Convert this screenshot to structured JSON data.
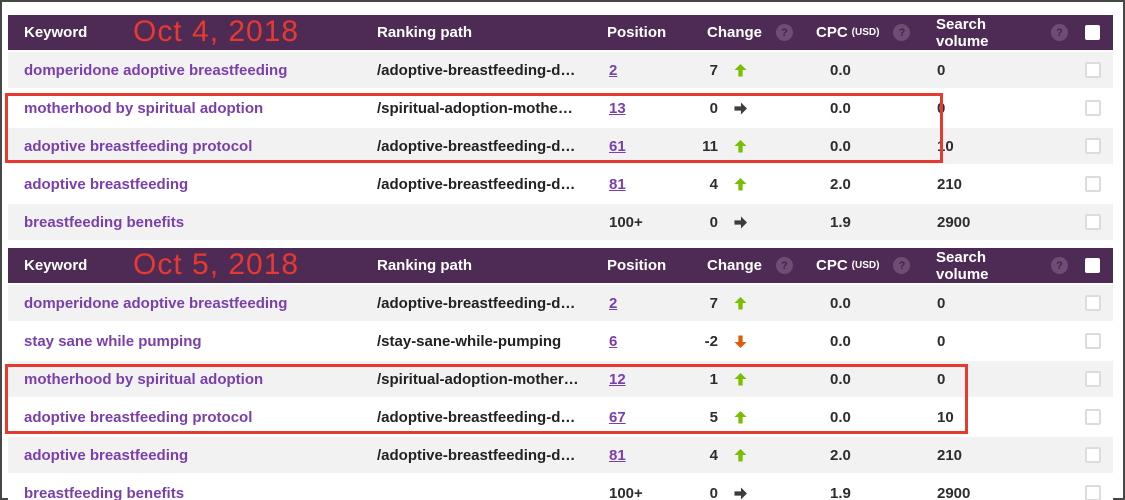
{
  "columns": {
    "keyword": "Keyword",
    "ranking_path": "Ranking path",
    "position": "Position",
    "change": "Change",
    "cpc": "CPC",
    "cpc_unit": "(USD)",
    "search_volume": "Search volume",
    "help_icon": "?"
  },
  "colors": {
    "header_bg": "#4e2b54",
    "link_purple": "#7a3fab",
    "positive_green": "#79be00",
    "negative_orange": "#e05a0c",
    "neutral_dark": "#3c3c3c",
    "annotation_red": "#e6392f",
    "row_alt": "#f2f2f2"
  },
  "tables": [
    {
      "date": "Oct 4, 2018",
      "rows": [
        {
          "keyword": "domperidone adoptive breastfeeding",
          "path": "/adoptive-breastfeeding-d…",
          "position": "2",
          "position_is_link": true,
          "change": "7",
          "trend": "up",
          "cpc": "0.0",
          "volume": "0",
          "highlighted": false
        },
        {
          "keyword": "motherhood by spiritual adoption",
          "path": "/spiritual-adoption-mothe…",
          "position": "13",
          "position_is_link": true,
          "change": "0",
          "trend": "flat",
          "cpc": "0.0",
          "volume": "0",
          "highlighted": true
        },
        {
          "keyword": "adoptive breastfeeding protocol",
          "path": "/adoptive-breastfeeding-d…",
          "position": "61",
          "position_is_link": true,
          "change": "11",
          "trend": "up",
          "cpc": "0.0",
          "volume": "10",
          "highlighted": true
        },
        {
          "keyword": "adoptive breastfeeding",
          "path": "/adoptive-breastfeeding-d…",
          "position": "81",
          "position_is_link": true,
          "change": "4",
          "trend": "up",
          "cpc": "2.0",
          "volume": "210",
          "highlighted": false
        },
        {
          "keyword": "breastfeeding benefits",
          "path": "",
          "position": "100+",
          "position_is_link": false,
          "change": "0",
          "trend": "flat",
          "cpc": "1.9",
          "volume": "2900",
          "highlighted": false
        }
      ]
    },
    {
      "date": "Oct 5, 2018",
      "rows": [
        {
          "keyword": "domperidone adoptive breastfeeding",
          "path": "/adoptive-breastfeeding-d…",
          "position": "2",
          "position_is_link": true,
          "change": "7",
          "trend": "up",
          "cpc": "0.0",
          "volume": "0",
          "highlighted": false
        },
        {
          "keyword": "stay sane while pumping",
          "path": "/stay-sane-while-pumping",
          "position": "6",
          "position_is_link": true,
          "change": "-2",
          "trend": "down",
          "cpc": "0.0",
          "volume": "0",
          "highlighted": false
        },
        {
          "keyword": "motherhood by spiritual adoption",
          "path": "/spiritual-adoption-mother…",
          "position": "12",
          "position_is_link": true,
          "change": "1",
          "trend": "up",
          "cpc": "0.0",
          "volume": "0",
          "highlighted": true
        },
        {
          "keyword": "adoptive breastfeeding protocol",
          "path": "/adoptive-breastfeeding-d…",
          "position": "67",
          "position_is_link": true,
          "change": "5",
          "trend": "up",
          "cpc": "0.0",
          "volume": "10",
          "highlighted": true
        },
        {
          "keyword": "adoptive breastfeeding",
          "path": "/adoptive-breastfeeding-d…",
          "position": "81",
          "position_is_link": true,
          "change": "4",
          "trend": "up",
          "cpc": "2.0",
          "volume": "210",
          "highlighted": false
        },
        {
          "keyword": "breastfeeding benefits",
          "path": "",
          "position": "100+",
          "position_is_link": false,
          "change": "0",
          "trend": "flat",
          "cpc": "1.9",
          "volume": "2900",
          "highlighted": false
        }
      ]
    }
  ]
}
